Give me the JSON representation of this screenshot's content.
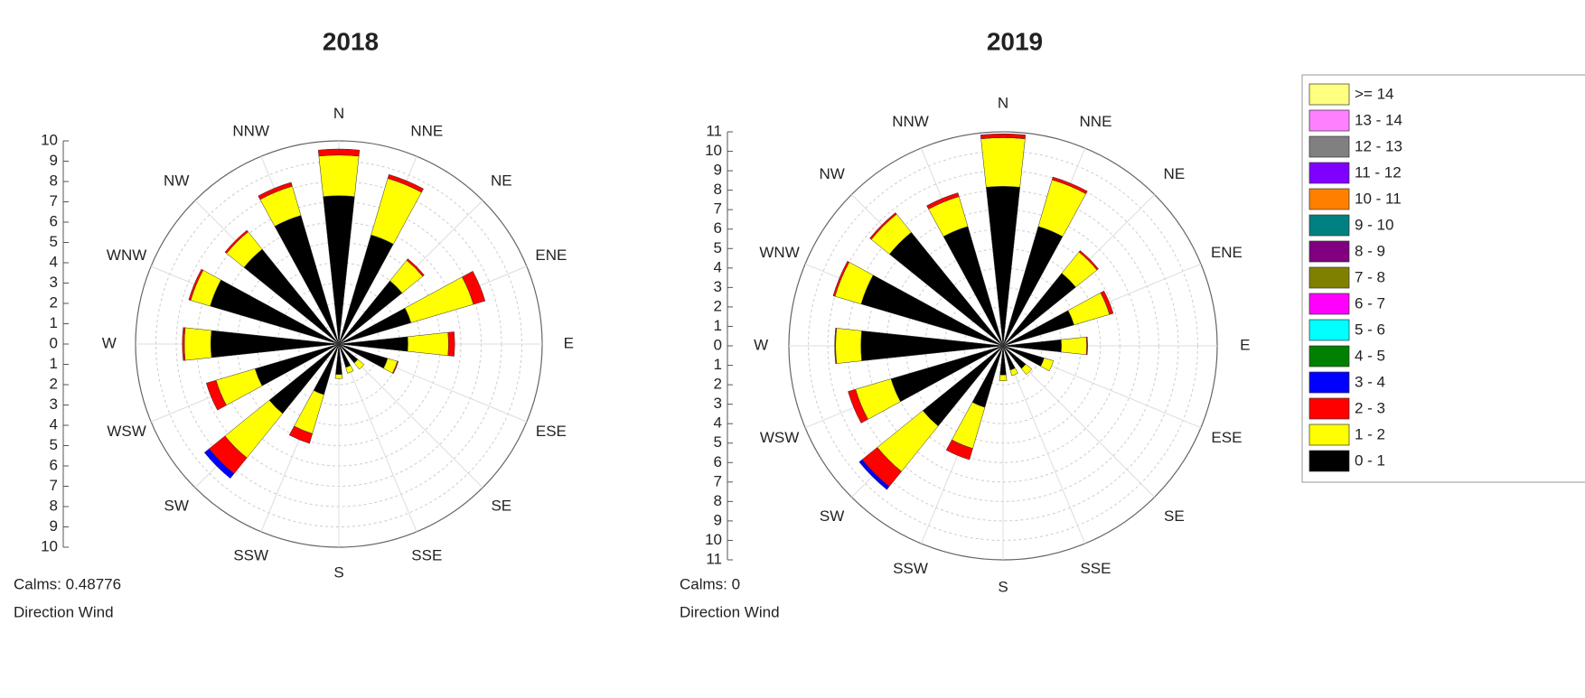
{
  "chart_data": [
    {
      "type": "windrose",
      "title": "2018",
      "calms": "Calms: 0.48776",
      "subtitle": "Direction Wind",
      "categories": [
        "N",
        "NNE",
        "NE",
        "ENE",
        "E",
        "ESE",
        "SE",
        "SSE",
        "S",
        "SSW",
        "SW",
        "WSW",
        "W",
        "WNW",
        "NW",
        "NNW"
      ],
      "ylim": [
        -10,
        10
      ],
      "yticks": [
        {
          "value": -10,
          "label": "10"
        },
        {
          "value": -9,
          "label": "9"
        },
        {
          "value": -8,
          "label": "8"
        },
        {
          "value": -7,
          "label": "7"
        },
        {
          "value": -6,
          "label": "6"
        },
        {
          "value": -5,
          "label": "5"
        },
        {
          "value": -4,
          "label": "4"
        },
        {
          "value": -3,
          "label": "3"
        },
        {
          "value": -2,
          "label": "2"
        },
        {
          "value": -1,
          "label": "1"
        },
        0,
        1,
        2,
        3,
        4,
        5,
        6,
        7,
        8,
        9,
        10
      ],
      "grid": true,
      "series": [
        {
          "name": "3 - 4",
          "color": "#0000ff",
          "values": [
            0,
            0,
            0,
            0,
            0,
            0,
            0,
            0,
            0,
            0,
            0.3,
            0,
            0,
            0,
            0,
            0
          ]
        },
        {
          "name": "2 - 3",
          "color": "#ff0000",
          "values": [
            0.3,
            0.2,
            0.1,
            0.6,
            0.3,
            0.05,
            0,
            0,
            0,
            0.5,
            1.0,
            0.5,
            0.1,
            0.1,
            0.1,
            0.2
          ]
        },
        {
          "name": "1 - 2",
          "color": "#ffff00",
          "values": [
            2.0,
            2.9,
            1.3,
            3.2,
            2.0,
            0.5,
            0.4,
            0.3,
            0.2,
            2.0,
            2.8,
            2.0,
            1.3,
            1.0,
            1.1,
            1.5
          ]
        },
        {
          "name": "0 - 1",
          "color": "#000000",
          "values": [
            7.3,
            5.6,
            4.0,
            3.7,
            3.4,
            2.5,
            1.2,
            1.2,
            1.5,
            2.6,
            4.4,
            4.3,
            6.3,
            6.6,
            6.0,
            6.6
          ]
        }
      ]
    },
    {
      "type": "windrose",
      "title": "2019",
      "calms": "Calms: 0",
      "subtitle": "Direction Wind",
      "categories": [
        "N",
        "NNE",
        "NE",
        "ENE",
        "E",
        "ESE",
        "SE",
        "SSE",
        "S",
        "SSW",
        "SW",
        "WSW",
        "W",
        "WNW",
        "NW",
        "NNW"
      ],
      "ylim": [
        -11,
        11
      ],
      "yticks": [
        {
          "value": -11,
          "label": "11"
        },
        {
          "value": -10,
          "label": "10"
        },
        {
          "value": -9,
          "label": "9"
        },
        {
          "value": -8,
          "label": "8"
        },
        {
          "value": -7,
          "label": "7"
        },
        {
          "value": -6,
          "label": "6"
        },
        {
          "value": -5,
          "label": "5"
        },
        {
          "value": -4,
          "label": "4"
        },
        {
          "value": -3,
          "label": "3"
        },
        {
          "value": -2,
          "label": "2"
        },
        {
          "value": -1,
          "label": "1"
        },
        0,
        1,
        2,
        3,
        4,
        5,
        6,
        7,
        8,
        9,
        10,
        11
      ],
      "grid": true,
      "legend": "right",
      "series": [
        {
          "name": ">= 14",
          "color": "#ffff80",
          "values": [
            0,
            0,
            0,
            0,
            0,
            0,
            0,
            0,
            0,
            0,
            0,
            0,
            0,
            0,
            0,
            0
          ]
        },
        {
          "name": "13 - 14",
          "color": "#ff80ff",
          "values": [
            0,
            0,
            0,
            0,
            0,
            0,
            0,
            0,
            0,
            0,
            0,
            0,
            0,
            0,
            0,
            0
          ]
        },
        {
          "name": "12 - 13",
          "color": "#808080",
          "values": [
            0,
            0,
            0,
            0,
            0,
            0,
            0,
            0,
            0,
            0,
            0,
            0,
            0,
            0,
            0,
            0
          ]
        },
        {
          "name": "11 - 12",
          "color": "#8000ff",
          "values": [
            0,
            0,
            0,
            0,
            0,
            0,
            0,
            0,
            0,
            0,
            0,
            0,
            0,
            0,
            0,
            0
          ]
        },
        {
          "name": "10 - 11",
          "color": "#ff8000",
          "values": [
            0,
            0,
            0,
            0,
            0,
            0,
            0,
            0,
            0,
            0,
            0,
            0,
            0,
            0,
            0,
            0
          ]
        },
        {
          "name": "9 - 10",
          "color": "#008080",
          "values": [
            0,
            0,
            0,
            0,
            0,
            0,
            0,
            0,
            0,
            0,
            0,
            0,
            0,
            0,
            0,
            0
          ]
        },
        {
          "name": "8 - 9",
          "color": "#800080",
          "values": [
            0,
            0,
            0,
            0,
            0,
            0,
            0,
            0,
            0,
            0,
            0,
            0,
            0,
            0,
            0,
            0
          ]
        },
        {
          "name": "7 - 8",
          "color": "#808000",
          "values": [
            0,
            0,
            0,
            0,
            0,
            0,
            0,
            0,
            0,
            0,
            0,
            0,
            0,
            0,
            0,
            0
          ]
        },
        {
          "name": "6 - 7",
          "color": "#ff00ff",
          "values": [
            0,
            0,
            0,
            0,
            0,
            0,
            0,
            0,
            0,
            0,
            0,
            0,
            0,
            0,
            0,
            0
          ]
        },
        {
          "name": "5 - 6",
          "color": "#00ffff",
          "values": [
            0,
            0,
            0,
            0,
            0,
            0,
            0,
            0,
            0,
            0,
            0,
            0,
            0,
            0,
            0,
            0
          ]
        },
        {
          "name": "4 - 5",
          "color": "#008000",
          "values": [
            0,
            0,
            0,
            0,
            0,
            0,
            0,
            0,
            0,
            0,
            0,
            0,
            0,
            0,
            0,
            0
          ]
        },
        {
          "name": "3 - 4",
          "color": "#0000ff",
          "values": [
            0,
            0,
            0,
            0,
            0,
            0,
            0,
            0,
            0,
            0,
            0.2,
            0,
            0,
            0,
            0,
            0
          ]
        },
        {
          "name": "2 - 3",
          "color": "#ff0000",
          "values": [
            0.2,
            0.15,
            0.1,
            0.2,
            0.05,
            0,
            0,
            0,
            0,
            0.6,
            1.0,
            0.4,
            0.05,
            0.1,
            0.1,
            0.2
          ]
        },
        {
          "name": "1 - 2",
          "color": "#ffff00",
          "values": [
            2.5,
            2.5,
            1.4,
            1.9,
            1.3,
            0.5,
            0.4,
            0.3,
            0.3,
            2.2,
            3.0,
            1.9,
            1.3,
            1.4,
            1.2,
            1.6
          ]
        },
        {
          "name": "0 - 1",
          "color": "#000000",
          "values": [
            8.2,
            6.4,
            4.8,
            3.8,
            3.0,
            2.2,
            1.5,
            1.3,
            1.5,
            3.3,
            5.3,
            6.0,
            7.3,
            7.6,
            7.5,
            6.4
          ]
        }
      ]
    }
  ]
}
